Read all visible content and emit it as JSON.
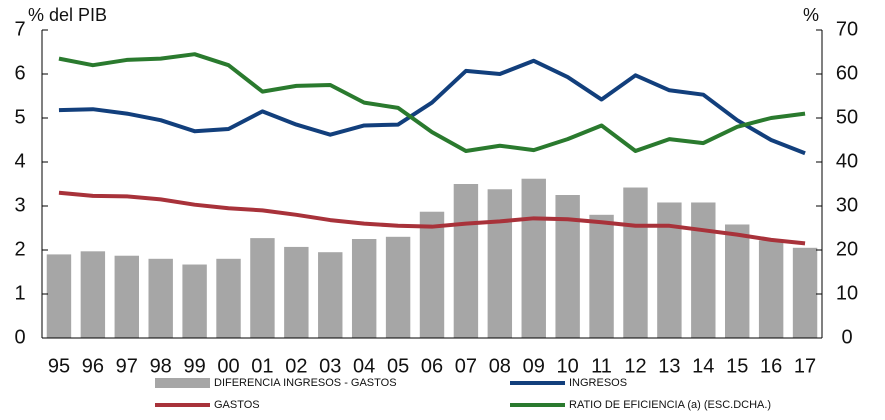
{
  "chart_data": {
    "type": "bar",
    "y_label": "% del PIB",
    "y2_label": "%",
    "categories": [
      "95",
      "96",
      "97",
      "98",
      "99",
      "00",
      "01",
      "02",
      "03",
      "04",
      "05",
      "06",
      "07",
      "08",
      "09",
      "10",
      "11",
      "12",
      "13",
      "14",
      "15",
      "16",
      "17"
    ],
    "series": [
      {
        "name": "DIFERENCIA INGRESOS - GASTOS",
        "kind": "bar",
        "color": "#a6a6a6",
        "values": [
          1.9,
          1.97,
          1.87,
          1.8,
          1.67,
          1.8,
          2.27,
          2.07,
          1.95,
          2.25,
          2.3,
          2.87,
          3.5,
          3.38,
          3.62,
          3.25,
          2.8,
          3.42,
          3.08,
          3.08,
          2.58,
          2.22,
          2.05
        ]
      },
      {
        "name": "INGRESOS",
        "kind": "line",
        "color": "#123f7c",
        "values": [
          5.18,
          5.2,
          5.1,
          4.95,
          4.7,
          4.75,
          5.15,
          4.85,
          4.62,
          4.83,
          4.85,
          5.35,
          6.07,
          6.0,
          6.3,
          5.93,
          5.42,
          5.97,
          5.63,
          5.53,
          4.95,
          4.5,
          4.2
        ]
      },
      {
        "name": "GASTOS",
        "kind": "line",
        "color": "#a8323a",
        "values": [
          3.3,
          3.23,
          3.22,
          3.15,
          3.03,
          2.95,
          2.9,
          2.8,
          2.68,
          2.6,
          2.55,
          2.53,
          2.6,
          2.65,
          2.72,
          2.7,
          2.63,
          2.55,
          2.55,
          2.45,
          2.35,
          2.23,
          2.15
        ]
      },
      {
        "name": "RATIO DE EFICIENCIA (a) (ESC.DCHA.)",
        "kind": "line",
        "axis": "y2",
        "color": "#2a7a2e",
        "values": [
          63.5,
          62,
          63.2,
          63.5,
          64.5,
          62,
          56,
          57.3,
          57.5,
          53.5,
          52.3,
          46.8,
          42.5,
          43.7,
          42.7,
          45.2,
          48.3,
          42.5,
          45.2,
          44.3,
          48,
          50,
          51
        ]
      }
    ],
    "ylim": [
      0,
      7
    ],
    "yticks": [
      0,
      1,
      2,
      3,
      4,
      5,
      6,
      7
    ],
    "y2lim": [
      0,
      70
    ],
    "y2ticks": [
      0,
      10,
      20,
      30,
      40,
      50,
      60,
      70
    ]
  }
}
